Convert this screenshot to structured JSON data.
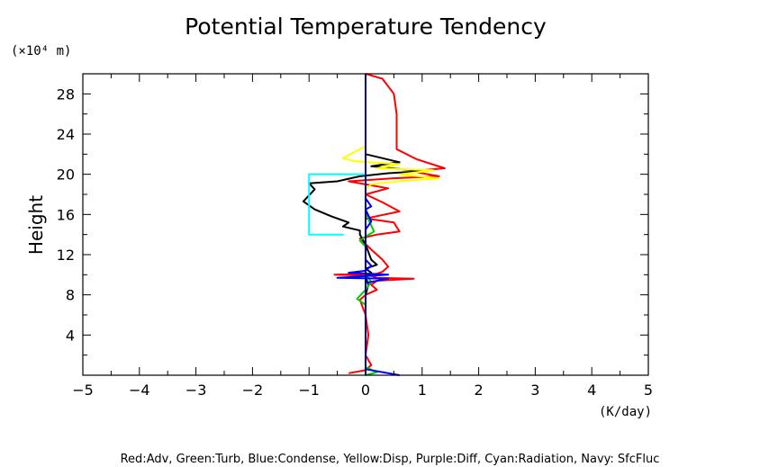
{
  "chart_data": {
    "type": "line",
    "title": "Potential Temperature Tendency",
    "ylabel": "Height",
    "y_unit": "(×10⁴ m)",
    "x_unit": "(K/day)",
    "xlim": [
      -5,
      5
    ],
    "ylim": [
      0,
      30
    ],
    "x_ticks": [
      "−5",
      "−4",
      "−3",
      "−2",
      "−1",
      "0",
      "1",
      "2",
      "3",
      "4",
      "5"
    ],
    "y_ticks": [
      "4",
      "8",
      "12",
      "16",
      "20",
      "24",
      "28"
    ],
    "grid": false,
    "legend_text": "Red:Adv, Green:Turb, Blue:Condense, Yellow:Disp, Purple:Diff, Cyan:Radiation, Navy: SfcFluc",
    "series": [
      {
        "color": "#ff0000",
        "points": [
          [
            0.0,
            30
          ],
          [
            0.3,
            29.5
          ],
          [
            0.5,
            28
          ],
          [
            0.55,
            26
          ],
          [
            0.55,
            24
          ],
          [
            0.55,
            22.5
          ],
          [
            0.9,
            21.5
          ],
          [
            1.4,
            20.6
          ],
          [
            0.8,
            20.3
          ],
          [
            1.3,
            19.8
          ],
          [
            0.5,
            19.6
          ],
          [
            -0.3,
            19.3
          ],
          [
            0.4,
            18.6
          ],
          [
            0.0,
            18.0
          ],
          [
            0.3,
            17.2
          ],
          [
            0.6,
            16.3
          ],
          [
            0.0,
            15.6
          ],
          [
            0.5,
            15.2
          ],
          [
            0.6,
            14.3
          ],
          [
            0.2,
            14.0
          ],
          [
            -0.1,
            13.6
          ],
          [
            0.1,
            12.5
          ],
          [
            0.3,
            11.5
          ],
          [
            0.4,
            10.8
          ],
          [
            0.3,
            10.3
          ],
          [
            0.2,
            10.1
          ],
          [
            -0.55,
            10.0
          ],
          [
            0.1,
            9.9
          ],
          [
            0.2,
            9.7
          ],
          [
            0.85,
            9.6
          ],
          [
            0.2,
            9.4
          ],
          [
            0.1,
            9.0
          ],
          [
            0.2,
            8.5
          ],
          [
            0.0,
            8.0
          ],
          [
            -0.1,
            7.5
          ],
          [
            0.0,
            6.0
          ],
          [
            0.05,
            4.0
          ],
          [
            0.0,
            2.0
          ],
          [
            0.1,
            1.0
          ],
          [
            0.0,
            0.5
          ],
          [
            -0.3,
            0.2
          ]
        ]
      },
      {
        "color": "#000000",
        "points": [
          [
            0.0,
            30
          ],
          [
            0.0,
            22.0
          ],
          [
            0.6,
            21.2
          ],
          [
            0.1,
            20.8
          ],
          [
            1.0,
            20.3
          ],
          [
            0.4,
            20.1
          ],
          [
            -0.1,
            19.8
          ],
          [
            -0.5,
            19.3
          ],
          [
            -1.0,
            19.1
          ],
          [
            -0.9,
            18.5
          ],
          [
            -1.1,
            17.3
          ],
          [
            -0.9,
            16.5
          ],
          [
            -0.6,
            15.8
          ],
          [
            -0.3,
            15.2
          ],
          [
            -0.4,
            14.8
          ],
          [
            -0.1,
            14.4
          ],
          [
            -0.1,
            14.0
          ],
          [
            0.0,
            13.0
          ],
          [
            0.1,
            11.5
          ],
          [
            0.2,
            11.0
          ],
          [
            0.0,
            10.6
          ],
          [
            0.1,
            10.2
          ],
          [
            0.0,
            9.8
          ],
          [
            0.05,
            9.0
          ],
          [
            0.0,
            8.0
          ],
          [
            0.0,
            0.0
          ]
        ]
      },
      {
        "color": "#ffff00",
        "points": [
          [
            0.0,
            24.0
          ],
          [
            0.0,
            22.8
          ],
          [
            -0.4,
            21.6
          ],
          [
            -0.2,
            21.3
          ],
          [
            0.6,
            21.0
          ],
          [
            0.2,
            20.6
          ],
          [
            1.2,
            20.4
          ],
          [
            0.6,
            20.0
          ],
          [
            1.3,
            19.6
          ],
          [
            0.6,
            19.3
          ],
          [
            0.1,
            19.0
          ],
          [
            0.0,
            18.5
          ],
          [
            0.0,
            0.0
          ]
        ]
      },
      {
        "color": "#00cc00",
        "points": [
          [
            0.0,
            18.0
          ],
          [
            0.0,
            16.5
          ],
          [
            0.05,
            15.5
          ],
          [
            0.15,
            14.3
          ],
          [
            0.0,
            13.8
          ],
          [
            -0.1,
            13.4
          ],
          [
            0.0,
            12.8
          ],
          [
            0.0,
            10.0
          ],
          [
            0.1,
            9.3
          ],
          [
            0.0,
            8.5
          ],
          [
            -0.15,
            7.6
          ],
          [
            0.0,
            7.0
          ],
          [
            0.0,
            0.8
          ],
          [
            0.2,
            0.3
          ],
          [
            0.0,
            0.0
          ]
        ]
      },
      {
        "color": "#0000ff",
        "points": [
          [
            0.0,
            17.6
          ],
          [
            0.1,
            16.8
          ],
          [
            0.0,
            16.5
          ],
          [
            0.1,
            15.3
          ],
          [
            0.0,
            14.5
          ],
          [
            0.0,
            13.0
          ],
          [
            0.0,
            11.5
          ],
          [
            0.1,
            10.9
          ],
          [
            0.0,
            10.4
          ],
          [
            -0.3,
            10.2
          ],
          [
            0.4,
            10.0
          ],
          [
            -0.5,
            9.7
          ],
          [
            0.4,
            9.6
          ],
          [
            0.0,
            9.2
          ],
          [
            0.0,
            0.6
          ],
          [
            0.3,
            0.3
          ],
          [
            0.6,
            0.0
          ]
        ]
      },
      {
        "color": "#00ffff",
        "points": [
          [
            0.0,
            20.0
          ],
          [
            -1.0,
            20.0
          ],
          [
            -1.0,
            14.0
          ],
          [
            -0.4,
            14.0
          ],
          [
            -0.4,
            13.9
          ]
        ]
      },
      {
        "color": "#000080",
        "points": [
          [
            0.0,
            30
          ],
          [
            0.0,
            0.0
          ]
        ]
      }
    ]
  }
}
